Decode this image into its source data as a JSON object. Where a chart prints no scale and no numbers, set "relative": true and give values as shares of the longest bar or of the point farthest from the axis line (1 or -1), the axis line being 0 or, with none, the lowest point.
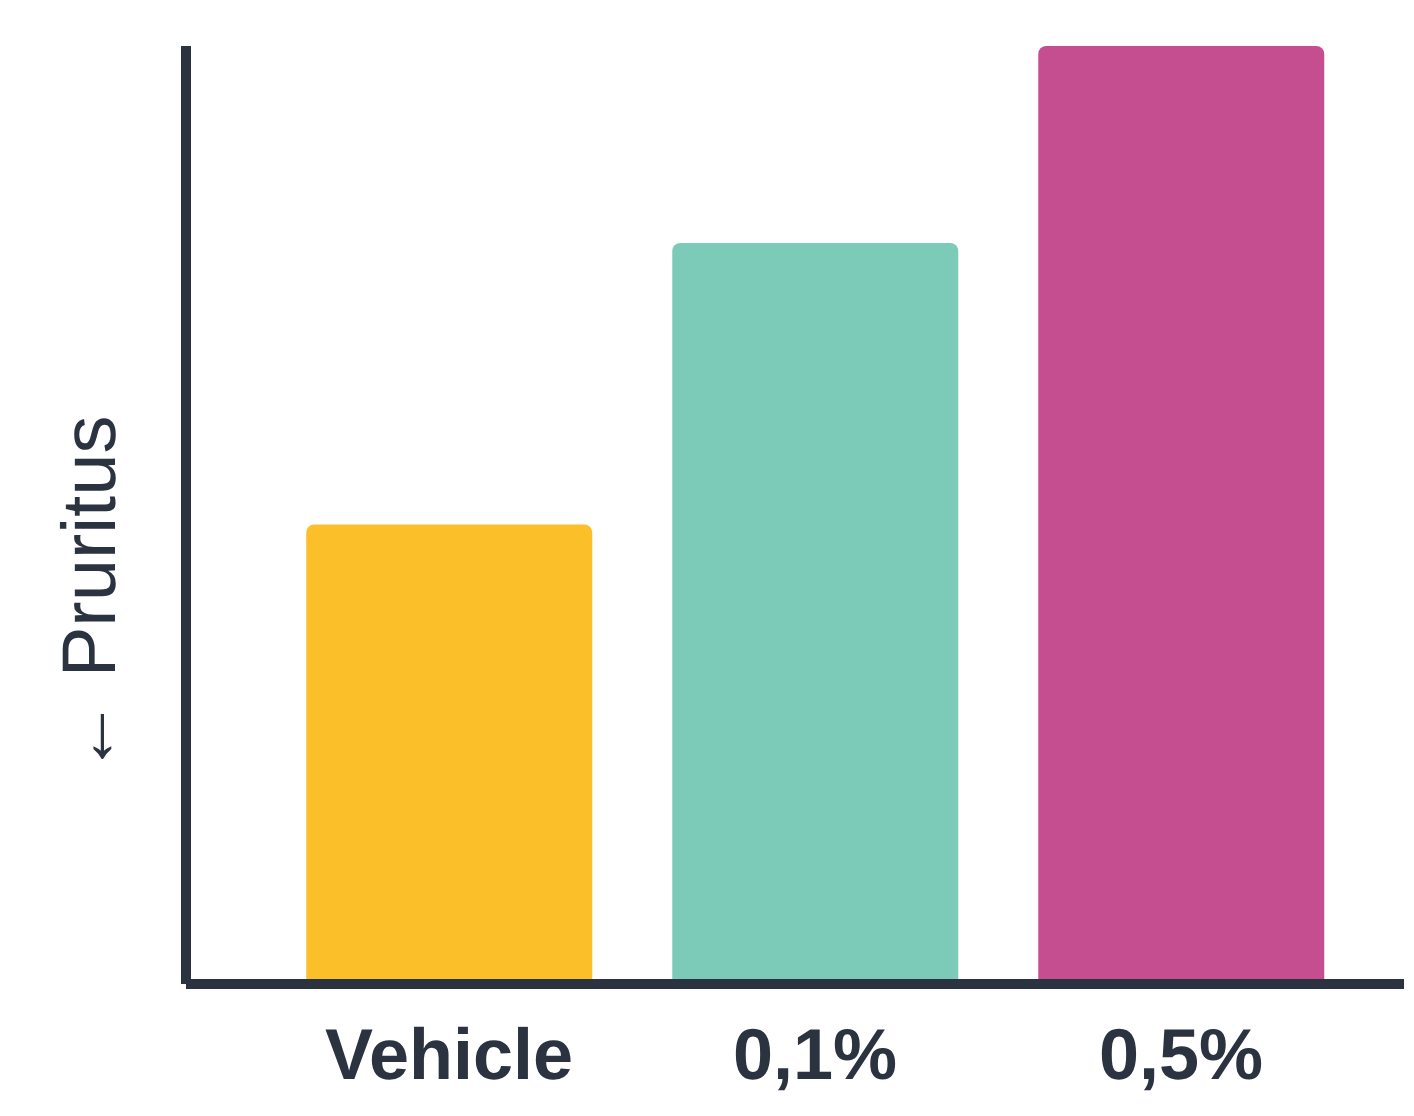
{
  "chart_data": {
    "type": "bar",
    "ylabel": "← Pruritus",
    "categories": [
      "Vehicle",
      "0,1%",
      "0,5%"
    ],
    "values": [
      0.49,
      0.79,
      1
    ],
    "colors": [
      "#fbbf2a",
      "#7ccbb8",
      "#c44e8f"
    ],
    "relative": true
  }
}
